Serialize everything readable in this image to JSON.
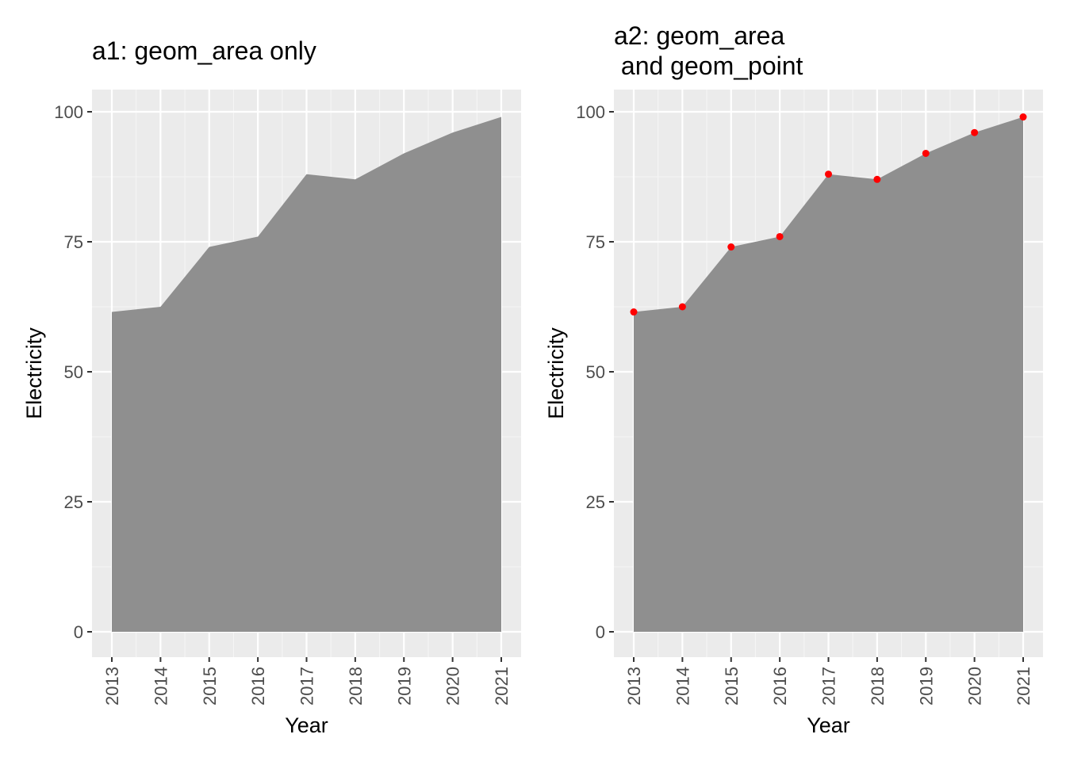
{
  "chart_data": [
    {
      "type": "area",
      "title": "a1: geom_area only",
      "xlabel": "Year",
      "ylabel": "Electricity",
      "x": [
        "2013",
        "2014",
        "2015",
        "2016",
        "2017",
        "2018",
        "2019",
        "2020",
        "2021"
      ],
      "values": [
        61.5,
        62.5,
        74,
        76,
        88,
        87,
        92,
        96,
        99
      ],
      "ylim": [
        0,
        100
      ],
      "yticks": [
        "0",
        "25",
        "50",
        "75",
        "100"
      ],
      "area_color": "#8f8f8f",
      "show_points": false,
      "grid": true
    },
    {
      "type": "area",
      "title": "a2: geom_area\n and geom_point",
      "title_lines": [
        "a2: geom_area",
        " and geom_point"
      ],
      "xlabel": "Year",
      "ylabel": "Electricity",
      "x": [
        "2013",
        "2014",
        "2015",
        "2016",
        "2017",
        "2018",
        "2019",
        "2020",
        "2021"
      ],
      "values": [
        61.5,
        62.5,
        74,
        76,
        88,
        87,
        92,
        96,
        99
      ],
      "ylim": [
        0,
        100
      ],
      "yticks": [
        "0",
        "25",
        "50",
        "75",
        "100"
      ],
      "area_color": "#8f8f8f",
      "point_color": "#ff0000",
      "show_points": true,
      "grid": true
    }
  ]
}
